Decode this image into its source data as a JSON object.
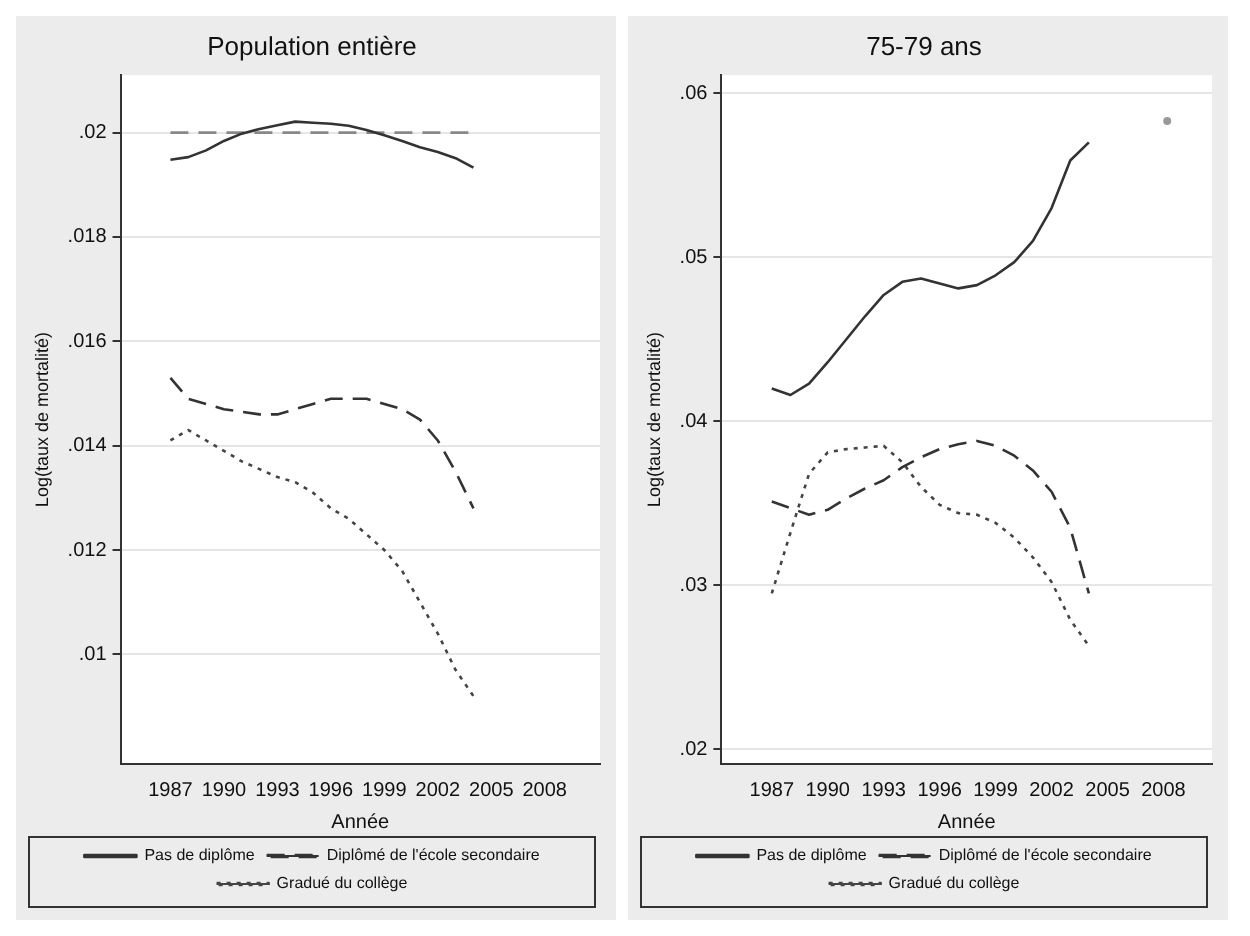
{
  "chart_data": [
    {
      "type": "line",
      "title": "Population entière",
      "xlabel": "Année",
      "ylabel": "Log(taux de mortalité)",
      "xlim": [
        1984.2,
        2011.1
      ],
      "xticks": [
        1987,
        1990,
        1993,
        1996,
        1999,
        2002,
        2005,
        2008
      ],
      "ylim": [
        0.0079,
        0.0211
      ],
      "yticks": [
        {
          "value": 0.01,
          "label": ".01"
        },
        {
          "value": 0.012,
          "label": ".012"
        },
        {
          "value": 0.014,
          "label": ".014"
        },
        {
          "value": 0.016,
          "label": ".016"
        },
        {
          "value": 0.018,
          "label": ".018"
        },
        {
          "value": 0.02,
          "label": ".02"
        }
      ],
      "grid": "y",
      "legend": "bottom",
      "series": [
        {
          "name": "Pas de diplôme",
          "color": "#333333",
          "line_style": "solid",
          "x": [
            1987,
            1988,
            1989,
            1990,
            1991,
            1992,
            1993,
            1994,
            1995,
            1996,
            1997,
            1998,
            1999,
            2000,
            2001,
            2002,
            2003,
            2004
          ],
          "values": [
            0.01948,
            0.01953,
            0.01966,
            0.01984,
            0.01998,
            0.02007,
            0.02014,
            0.02021,
            0.02019,
            0.02017,
            0.02013,
            0.02005,
            0.01995,
            0.01984,
            0.01972,
            0.01963,
            0.01951,
            0.01933
          ]
        },
        {
          "name": "Diplômé de l'école secondaire",
          "color": "#333333",
          "line_style": "dashed",
          "x": [
            1987,
            1988,
            1989,
            1990,
            1991,
            1992,
            1993,
            1994,
            1995,
            1996,
            1997,
            1998,
            1999,
            2000,
            2001,
            2002,
            2003,
            2004
          ],
          "values": [
            0.0153,
            0.0149,
            0.0148,
            0.0147,
            0.01465,
            0.0146,
            0.0146,
            0.0147,
            0.0148,
            0.0149,
            0.0149,
            0.0149,
            0.0148,
            0.0147,
            0.0145,
            0.0141,
            0.0135,
            0.0128
          ]
        },
        {
          "name": "Gradué du collège",
          "color": "#444444",
          "line_style": "dotted",
          "x": [
            1987,
            1988,
            1989,
            1990,
            1991,
            1992,
            1993,
            1994,
            1995,
            1996,
            1997,
            1998,
            1999,
            2000,
            2001,
            2002,
            2003,
            2004
          ],
          "values": [
            0.0141,
            0.0143,
            0.0141,
            0.0139,
            0.0137,
            0.01355,
            0.0134,
            0.0133,
            0.0131,
            0.0128,
            0.0126,
            0.0123,
            0.012,
            0.0116,
            0.011,
            0.0104,
            0.0097,
            0.0092
          ]
        },
        {
          "color": "#888888",
          "line_style": "dashed",
          "x": [
            1987,
            2004
          ],
          "values": [
            0.02,
            0.02
          ]
        }
      ]
    },
    {
      "type": "line",
      "title": "75-79 ans",
      "xlabel": "Année",
      "ylabel": "Log(taux de mortalité)",
      "xlim": [
        1984.3,
        2010.6
      ],
      "xticks": [
        1987,
        1990,
        1993,
        1996,
        1999,
        2002,
        2005,
        2008
      ],
      "ylim": [
        0.0191,
        0.0611
      ],
      "yticks": [
        {
          "value": 0.02,
          "label": ".02"
        },
        {
          "value": 0.03,
          "label": ".03"
        },
        {
          "value": 0.04,
          "label": ".04"
        },
        {
          "value": 0.05,
          "label": ".05"
        },
        {
          "value": 0.06,
          "label": ".06"
        }
      ],
      "grid": "y",
      "legend": "bottom",
      "series": [
        {
          "name": "Pas de diplôme",
          "color": "#333333",
          "line_style": "solid",
          "x": [
            1987,
            1988,
            1989,
            1990,
            1991,
            1992,
            1993,
            1994,
            1995,
            1996,
            1997,
            1998,
            1999,
            2000,
            2001,
            2002,
            2003,
            2004
          ],
          "values": [
            0.042,
            0.0416,
            0.0423,
            0.0436,
            0.045,
            0.0464,
            0.0477,
            0.0485,
            0.0487,
            0.0484,
            0.0481,
            0.0483,
            0.0489,
            0.0497,
            0.051,
            0.053,
            0.0559,
            0.057
          ]
        },
        {
          "name": "Diplômé de l'école secondaire",
          "color": "#333333",
          "line_style": "dashed",
          "x": [
            1987,
            1988,
            1989,
            1990,
            1991,
            1992,
            1993,
            1994,
            1995,
            1996,
            1997,
            1998,
            1999,
            2000,
            2001,
            2002,
            2003,
            2004
          ],
          "values": [
            0.0351,
            0.0347,
            0.0343,
            0.0346,
            0.0353,
            0.0359,
            0.0364,
            0.0372,
            0.0378,
            0.0383,
            0.0386,
            0.0388,
            0.0385,
            0.0379,
            0.037,
            0.0357,
            0.0335,
            0.0295
          ]
        },
        {
          "name": "Gradué du collège",
          "color": "#444444",
          "line_style": "dotted",
          "x": [
            1987,
            1988,
            1989,
            1990,
            1991,
            1992,
            1993,
            1994,
            1995,
            1996,
            1997,
            1998,
            1999,
            2000,
            2001,
            2002,
            2003,
            2004
          ],
          "values": [
            0.0295,
            0.0332,
            0.0368,
            0.0381,
            0.0383,
            0.0384,
            0.0385,
            0.0375,
            0.036,
            0.0349,
            0.0344,
            0.0343,
            0.0338,
            0.0329,
            0.0317,
            0.0302,
            0.0279,
            0.0263
          ]
        },
        {
          "type": "scatter",
          "marker": "circle",
          "color": "#999999",
          "x": [
            2008.2
          ],
          "values": [
            0.0583
          ]
        }
      ]
    }
  ]
}
